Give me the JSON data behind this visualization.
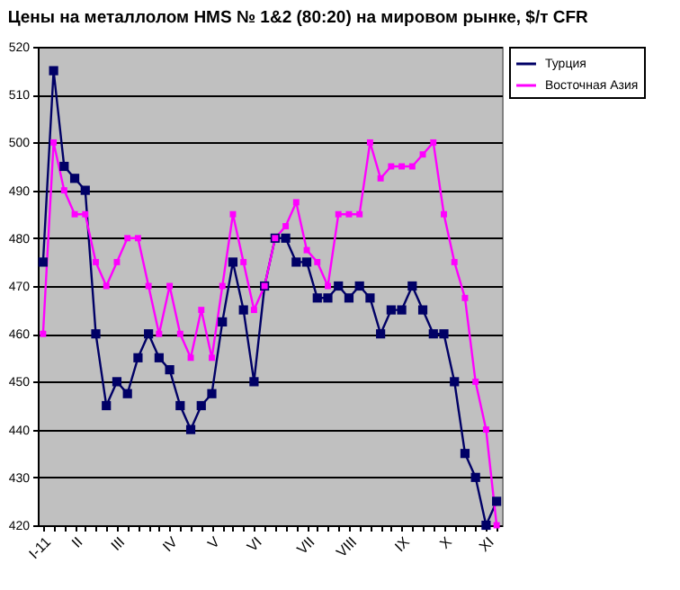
{
  "chart_data": {
    "type": "line",
    "title": "Цены на металлолом HMS № 1&2 (80:20) на мировом рынке, $/т CFR",
    "categories": [
      "I-11",
      null,
      null,
      "II",
      null,
      null,
      null,
      "III",
      null,
      null,
      null,
      null,
      "IV",
      null,
      null,
      null,
      "V",
      null,
      null,
      null,
      "VI",
      null,
      null,
      null,
      null,
      "VII",
      null,
      null,
      null,
      "VIII",
      null,
      null,
      null,
      null,
      "IX",
      null,
      null,
      null,
      "X",
      null,
      null,
      null,
      "XI",
      null
    ],
    "series": [
      {
        "name": "Турция",
        "color": "#000066",
        "values": [
          475,
          515,
          495,
          492.5,
          490,
          460,
          445,
          450,
          447.5,
          455,
          460,
          455,
          452.5,
          445,
          440,
          445,
          447.5,
          462.5,
          475,
          465,
          450,
          470,
          480,
          480,
          475,
          475,
          467.5,
          467.5,
          470,
          467.5,
          470,
          467.5,
          460,
          465,
          465,
          470,
          465,
          460,
          460,
          450,
          435,
          430,
          420,
          425
        ]
      },
      {
        "name": "Восточная Азия",
        "color": "#ff00ff",
        "values": [
          460,
          500,
          490,
          485,
          485,
          475,
          470,
          475,
          480,
          480,
          470,
          460,
          470,
          460,
          455,
          465,
          455,
          470,
          485,
          475,
          465,
          470,
          480,
          482.5,
          487.5,
          477.5,
          475,
          470,
          485,
          485,
          485,
          500,
          492.5,
          495,
          495,
          495,
          497.5,
          500,
          485,
          475,
          467.5,
          450,
          440,
          420
        ]
      }
    ],
    "ylim": [
      420,
      520
    ],
    "yticks": [
      420,
      430,
      440,
      450,
      460,
      470,
      480,
      490,
      500,
      510,
      520
    ],
    "grid": "y",
    "legend": "right",
    "marker": "square",
    "line_style": "solid"
  }
}
